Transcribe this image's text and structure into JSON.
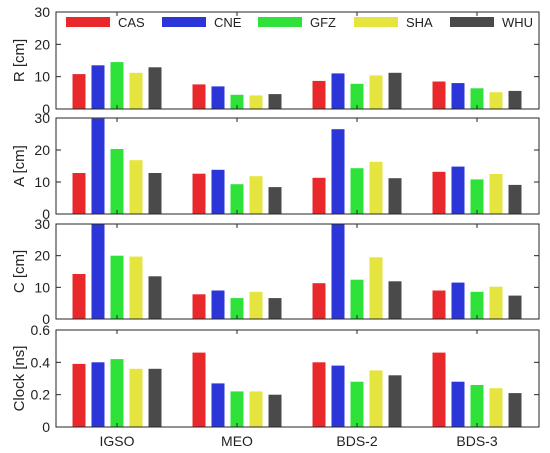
{
  "chart_data": {
    "type": "bar",
    "categories": [
      "IGSO",
      "MEO",
      "BDS-2",
      "BDS-3"
    ],
    "legend": {
      "placement": "top",
      "entries": [
        "CAS",
        "CNE",
        "GFZ",
        "SHA",
        "WHU"
      ]
    },
    "series_colors": [
      "#e8282b",
      "#2b35d8",
      "#2fe23a",
      "#e6e43e",
      "#4a4a4a"
    ],
    "grid": false,
    "panels": [
      {
        "ylabel": "R [cm]",
        "ylim": [
          0,
          30
        ],
        "yticks": [
          0,
          10,
          20,
          30
        ],
        "series": [
          {
            "name": "CAS",
            "values": [
              10.8,
              7.6,
              8.7,
              8.5
            ]
          },
          {
            "name": "CNE",
            "values": [
              13.5,
              7.0,
              11.0,
              8.0
            ]
          },
          {
            "name": "GFZ",
            "values": [
              14.5,
              4.4,
              7.8,
              6.4
            ]
          },
          {
            "name": "SHA",
            "values": [
              11.2,
              4.2,
              10.4,
              5.2
            ]
          },
          {
            "name": "WHU",
            "values": [
              12.9,
              4.6,
              11.2,
              5.6
            ]
          }
        ]
      },
      {
        "ylabel": "A [cm]",
        "ylim": [
          0,
          30
        ],
        "yticks": [
          0,
          10,
          20,
          30
        ],
        "series": [
          {
            "name": "CAS",
            "values": [
              12.8,
              12.6,
              11.3,
              13.2
            ]
          },
          {
            "name": "CNE",
            "values": [
              29.8,
              13.8,
              26.5,
              14.8
            ]
          },
          {
            "name": "GFZ",
            "values": [
              20.3,
              9.3,
              14.3,
              10.8
            ]
          },
          {
            "name": "SHA",
            "values": [
              16.8,
              11.8,
              16.3,
              12.5
            ]
          },
          {
            "name": "WHU",
            "values": [
              12.8,
              8.4,
              11.2,
              9.1
            ]
          }
        ]
      },
      {
        "ylabel": "C [cm]",
        "ylim": [
          0,
          30
        ],
        "yticks": [
          0,
          10,
          20,
          30
        ],
        "series": [
          {
            "name": "CAS",
            "values": [
              14.2,
              7.8,
              11.3,
              9.0
            ]
          },
          {
            "name": "CNE",
            "values": [
              30.0,
              9.0,
              30.0,
              11.5
            ]
          },
          {
            "name": "GFZ",
            "values": [
              20.0,
              6.6,
              12.4,
              8.6
            ]
          },
          {
            "name": "SHA",
            "values": [
              19.7,
              8.6,
              19.5,
              10.2
            ]
          },
          {
            "name": "WHU",
            "values": [
              13.5,
              6.6,
              11.9,
              7.4
            ]
          }
        ]
      },
      {
        "ylabel": "Clock [ns]",
        "ylim": [
          0,
          0.6
        ],
        "yticks": [
          0,
          0.2,
          0.4,
          0.6
        ],
        "series": [
          {
            "name": "CAS",
            "values": [
              0.39,
              0.46,
              0.4,
              0.46
            ]
          },
          {
            "name": "CNE",
            "values": [
              0.4,
              0.27,
              0.38,
              0.28
            ]
          },
          {
            "name": "GFZ",
            "values": [
              0.42,
              0.22,
              0.28,
              0.26
            ]
          },
          {
            "name": "SHA",
            "values": [
              0.36,
              0.22,
              0.35,
              0.24
            ]
          },
          {
            "name": "WHU",
            "values": [
              0.36,
              0.2,
              0.32,
              0.21
            ]
          }
        ]
      }
    ]
  }
}
